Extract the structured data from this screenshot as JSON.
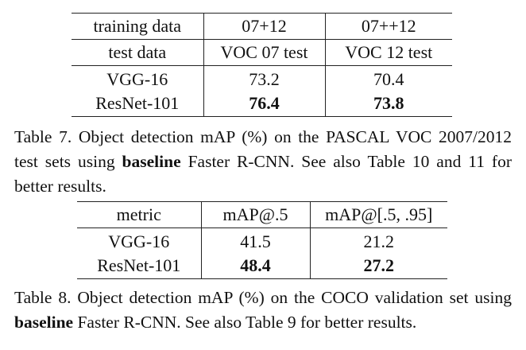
{
  "table7": {
    "header_rows": [
      {
        "col1": "training data",
        "col2": "07+12",
        "col3": "07++12"
      },
      {
        "col1": "test data",
        "col2": "VOC 07 test",
        "col3": "VOC 12 test"
      }
    ],
    "rows": [
      {
        "model": "VGG-16",
        "v1": "73.2",
        "v2": "70.4"
      },
      {
        "model": "ResNet-101",
        "v1": "76.4",
        "v2": "73.8"
      }
    ],
    "caption_before": "Table 7. Object detection mAP (%) on the PASCAL VOC 2007/2012 test sets using ",
    "caption_bold": "baseline",
    "caption_after": " Faster R-CNN. See also Table 10 and 11 for better results."
  },
  "table8": {
    "header": {
      "col1": "metric",
      "col2": "mAP@.5",
      "col3": "mAP@[.5, .95]"
    },
    "rows": [
      {
        "model": "VGG-16",
        "v1": "41.5",
        "v2": "21.2"
      },
      {
        "model": "ResNet-101",
        "v1": "48.4",
        "v2": "27.2"
      }
    ],
    "caption_before": "Table 8. Object detection mAP (%) on the COCO validation set using ",
    "caption_bold": "baseline",
    "caption_after": " Faster R-CNN. See also Table 9 for better results."
  }
}
